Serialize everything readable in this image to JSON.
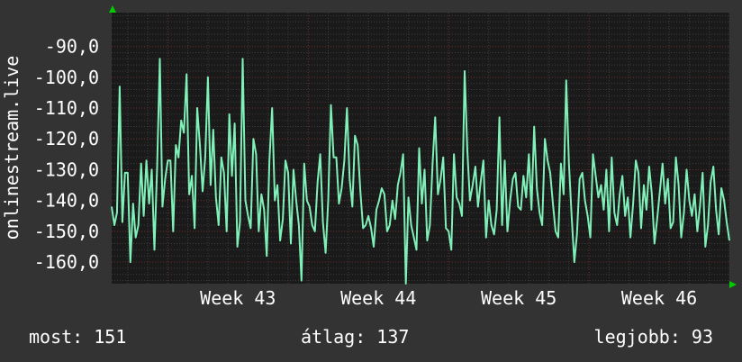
{
  "chart_data": {
    "type": "line",
    "ylabel": "onlinestream.live",
    "ylim": [
      -167,
      -79
    ],
    "y_ticks": [
      "-90,0",
      "-100,0",
      "-110,0",
      "-120,0",
      "-130,0",
      "-140,0",
      "-150,0",
      "-160,0"
    ],
    "y_tick_values": [
      -90,
      -100,
      -110,
      -120,
      -130,
      -140,
      -150,
      -160
    ],
    "x_tick_labels": [
      "Week 43",
      "Week 44",
      "Week 45",
      "Week 46"
    ],
    "x_range_weeks": [
      42.6,
      47.0
    ],
    "grid": true,
    "colors": {
      "background": "#333333",
      "plot": "#1a1a1a",
      "line": "#7ff0b8",
      "grid_minor": "#3d3d3d",
      "grid_major": "#6b2a2a",
      "axis_arrow": "#00cc00",
      "text": "#ffffff"
    },
    "series": [
      {
        "values": [
          -142,
          -148,
          -144,
          -103,
          -147,
          -131,
          -131,
          -160,
          -141,
          -152,
          -148,
          -128,
          -145,
          -127,
          -141,
          -130,
          -156,
          -129,
          -94,
          -142,
          -133,
          -127,
          -127,
          -150,
          -122,
          -126,
          -114,
          -118,
          -99,
          -138,
          -132,
          -149,
          -110,
          -122,
          -137,
          -126,
          -100,
          -135,
          -117,
          -139,
          -148,
          -126,
          -131,
          -150,
          -112,
          -132,
          -115,
          -155,
          -147,
          -94,
          -140,
          -145,
          -149,
          -120,
          -125,
          -150,
          -138,
          -143,
          -158,
          -127,
          -110,
          -140,
          -135,
          -153,
          -146,
          -127,
          -131,
          -154,
          -130,
          -140,
          -148,
          -166,
          -128,
          -140,
          -142,
          -148,
          -150,
          -134,
          -125,
          -147,
          -157,
          -140,
          -109,
          -126,
          -126,
          -141,
          -136,
          -127,
          -110,
          -133,
          -142,
          -119,
          -122,
          -137,
          -149,
          -148,
          -145,
          -149,
          -155,
          -143,
          -140,
          -136,
          -138,
          -150,
          -148,
          -140,
          -146,
          -135,
          -131,
          -125,
          -167,
          -139,
          -148,
          -152,
          -156,
          -123,
          -141,
          -130,
          -153,
          -148,
          -128,
          -113,
          -138,
          -133,
          -126,
          -149,
          -150,
          -156,
          -125,
          -139,
          -141,
          -145,
          -98,
          -124,
          -140,
          -135,
          -129,
          -142,
          -134,
          -127,
          -152,
          -140,
          -148,
          -151,
          -143,
          -113,
          -148,
          -127,
          -150,
          -140,
          -133,
          -131,
          -142,
          -143,
          -132,
          -139,
          -125,
          -143,
          -116,
          -136,
          -144,
          -148,
          -120,
          -127,
          -131,
          -141,
          -150,
          -152,
          -128,
          -138,
          -101,
          -128,
          -145,
          -160,
          -151,
          -133,
          -131,
          -140,
          -145,
          -152,
          -125,
          -132,
          -139,
          -135,
          -143,
          -130,
          -150,
          -126,
          -144,
          -148,
          -138,
          -132,
          -145,
          -139,
          -152,
          -141,
          -127,
          -131,
          -149,
          -135,
          -143,
          -129,
          -138,
          -154,
          -146,
          -137,
          -128,
          -141,
          -133,
          -149,
          -147,
          -126,
          -135,
          -152,
          -144,
          -130,
          -140,
          -145,
          -138,
          -150,
          -142,
          -131,
          -155,
          -148,
          -134,
          -129,
          -143,
          -151,
          -136,
          -140,
          -147,
          -153
        ],
        "x_start_week": 42.6,
        "x_end_week": 47.0
      }
    ]
  },
  "stats": {
    "now": "most: 151",
    "avg": "átlag: 137",
    "best": "legjobb: 93"
  }
}
